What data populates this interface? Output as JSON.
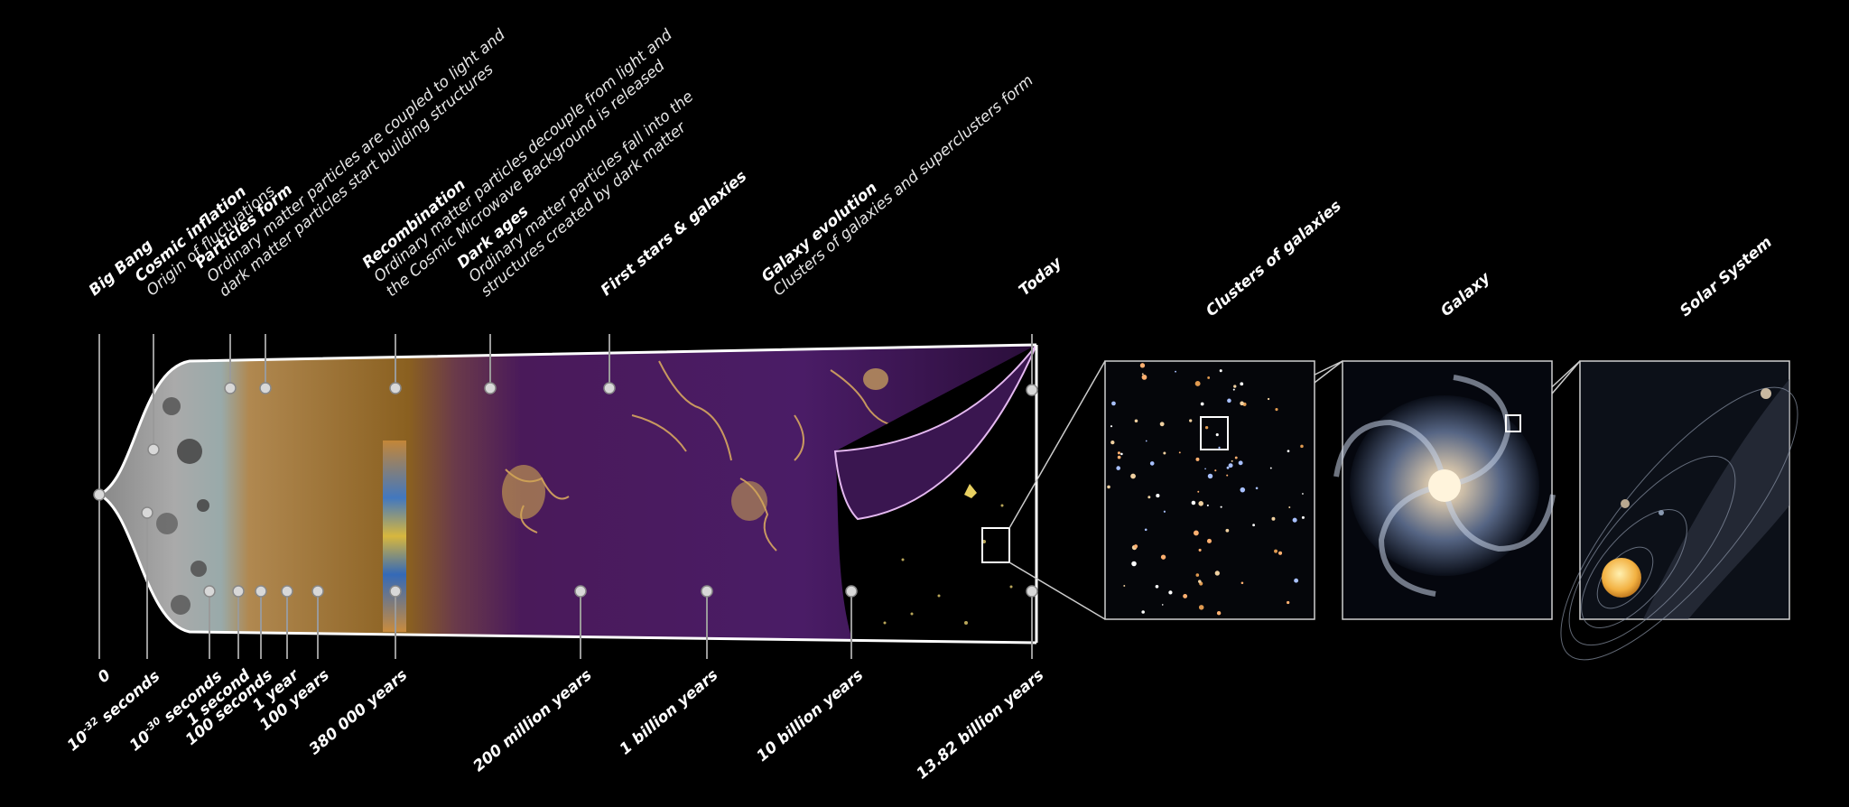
{
  "timeline": {
    "top_events": [
      {
        "title": "Big Bang",
        "desc": []
      },
      {
        "title": "Cosmic inflation",
        "desc": [
          "Origin of fluctuations"
        ]
      },
      {
        "title": "Particles form",
        "desc": [
          "Ordinary matter particles are coupled to light and",
          "dark matter particles start building structures"
        ]
      },
      {
        "title": "Recombination",
        "desc": [
          "Ordinary matter particles decouple from light and",
          "the Cosmic Microwave Background is released"
        ]
      },
      {
        "title": "Dark ages",
        "desc": [
          "Ordinary  matter  particles  fall  into  the",
          "structures created by dark matter"
        ]
      },
      {
        "title": "First stars & galaxies",
        "desc": []
      },
      {
        "title": "Galaxy evolution",
        "desc": [
          "Clusters of galaxies and superclusters form"
        ]
      },
      {
        "title": "Today",
        "desc": []
      }
    ],
    "bottom_ticks": [
      {
        "base": "0",
        "exp": ""
      },
      {
        "base": "10",
        "exp": "-32",
        "suffix": " seconds"
      },
      {
        "base": "10",
        "exp": "-30",
        "suffix": " seconds"
      },
      {
        "base": "1 second",
        "exp": ""
      },
      {
        "base": "100 seconds",
        "exp": ""
      },
      {
        "base": "1 year",
        "exp": ""
      },
      {
        "base": "100 years",
        "exp": ""
      },
      {
        "base": "380 000 years",
        "exp": ""
      },
      {
        "base": "200 million years",
        "exp": ""
      },
      {
        "base": "1 billion years",
        "exp": ""
      },
      {
        "base": "10 billion years",
        "exp": ""
      },
      {
        "base": "13.82 billion years",
        "exp": ""
      }
    ]
  },
  "panels": [
    {
      "title": "Clusters of galaxies"
    },
    {
      "title": "Galaxy"
    },
    {
      "title": "Solar System"
    }
  ],
  "colors": {
    "background": "#000000",
    "cone_outline": "#ffffff",
    "dark_ages_purple": "#5a2a7a",
    "filament_gold": "#f0c060",
    "particle_era": "#9a6a2a"
  }
}
